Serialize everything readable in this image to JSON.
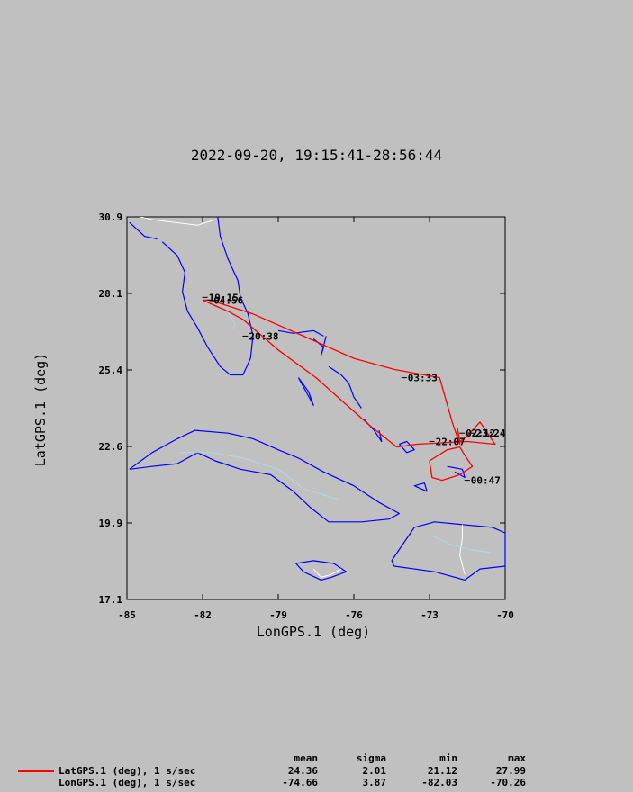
{
  "title": "2022-09-20, 19:15:41-28:56:44",
  "colors": {
    "track": "#ff0000",
    "coast": "#0000ff",
    "border": "#ffffff",
    "inland": "#add8e6",
    "background": "#c0c0c0"
  },
  "chart_data": {
    "type": "line",
    "xlabel": "LonGPS.1 (deg)",
    "ylabel": "LatGPS.1 (deg)",
    "xlim": [
      -85,
      -70
    ],
    "ylim": [
      17.1,
      30.9
    ],
    "x_ticks": [
      "-85",
      "-82",
      "-79",
      "-76",
      "-73",
      "-70"
    ],
    "y_ticks": [
      "30.9",
      "28.1",
      "25.4",
      "22.6",
      "19.9",
      "17.1"
    ],
    "track": [
      [
        -82.0,
        27.9
      ],
      [
        -81.7,
        27.9
      ],
      [
        -80.0,
        27.4
      ],
      [
        -78.0,
        26.6
      ],
      [
        -76.0,
        25.8
      ],
      [
        -74.4,
        25.4
      ],
      [
        -72.6,
        25.1
      ],
      [
        -72.1,
        23.5
      ],
      [
        -71.8,
        22.7
      ],
      [
        -71.9,
        23.3
      ],
      [
        -71.8,
        22.8
      ],
      [
        -71.5,
        23.0
      ],
      [
        -71.0,
        23.5
      ],
      [
        -70.4,
        22.7
      ],
      [
        -71.5,
        22.8
      ],
      [
        -73.5,
        22.7
      ],
      [
        -74.3,
        22.6
      ],
      [
        -75.4,
        23.4
      ],
      [
        -77.5,
        25.1
      ],
      [
        -79.0,
        26.1
      ],
      [
        -80.4,
        27.2
      ],
      [
        -81.0,
        27.5
      ],
      [
        -81.5,
        27.7
      ],
      [
        -82.0,
        27.9
      ]
    ],
    "track_south": [
      [
        -71.8,
        22.6
      ],
      [
        -71.6,
        22.3
      ],
      [
        -71.3,
        21.9
      ],
      [
        -71.8,
        21.6
      ],
      [
        -72.5,
        21.4
      ],
      [
        -72.9,
        21.5
      ],
      [
        -73.0,
        22.1
      ],
      [
        -72.3,
        22.5
      ],
      [
        -71.8,
        22.6
      ]
    ],
    "annotations": [
      {
        "text": "19:15",
        "lon": -81.8,
        "lat": 28.0
      },
      {
        "text": "04:56",
        "lon": -81.6,
        "lat": 27.9
      },
      {
        "text": "20:38",
        "lon": -80.2,
        "lat": 26.6
      },
      {
        "text": "03:33",
        "lon": -73.9,
        "lat": 25.1
      },
      {
        "text": "22:07",
        "lon": -72.8,
        "lat": 22.8
      },
      {
        "text": "02:12",
        "lon": -71.6,
        "lat": 23.1
      },
      {
        "text": "23:24",
        "lon": -71.2,
        "lat": 23.1
      },
      {
        "text": "00:47",
        "lon": -71.4,
        "lat": 21.4
      }
    ],
    "coastlines": [
      [
        [
          -83.6,
          30.0
        ],
        [
          -83.0,
          29.5
        ],
        [
          -82.7,
          28.9
        ],
        [
          -82.8,
          28.2
        ],
        [
          -82.6,
          27.5
        ],
        [
          -82.2,
          26.9
        ],
        [
          -81.8,
          26.2
        ],
        [
          -81.3,
          25.5
        ],
        [
          -80.9,
          25.2
        ],
        [
          -80.4,
          25.2
        ],
        [
          -80.1,
          25.8
        ],
        [
          -80.0,
          26.6
        ],
        [
          -80.2,
          27.4
        ],
        [
          -80.5,
          28.0
        ],
        [
          -80.6,
          28.6
        ],
        [
          -81.0,
          29.4
        ],
        [
          -81.3,
          30.2
        ],
        [
          -81.4,
          30.9
        ]
      ],
      [
        [
          -84.9,
          30.7
        ],
        [
          -84.3,
          30.2
        ],
        [
          -83.8,
          30.1
        ]
      ],
      [
        [
          -84.9,
          21.8
        ],
        [
          -84.0,
          22.4
        ],
        [
          -83.0,
          22.9
        ],
        [
          -82.3,
          23.2
        ],
        [
          -81.0,
          23.1
        ],
        [
          -80.0,
          22.9
        ],
        [
          -79.0,
          22.5
        ],
        [
          -78.2,
          22.2
        ],
        [
          -77.2,
          21.7
        ],
        [
          -76.0,
          21.2
        ],
        [
          -75.0,
          20.6
        ],
        [
          -74.2,
          20.2
        ],
        [
          -74.6,
          20.0
        ],
        [
          -75.7,
          19.9
        ],
        [
          -77.0,
          19.9
        ],
        [
          -77.7,
          20.4
        ],
        [
          -78.4,
          21.0
        ],
        [
          -79.3,
          21.6
        ],
        [
          -80.5,
          21.8
        ],
        [
          -81.5,
          22.1
        ],
        [
          -82.2,
          22.4
        ],
        [
          -83.0,
          22.0
        ],
        [
          -84.0,
          21.9
        ],
        [
          -84.9,
          21.8
        ]
      ],
      [
        [
          -78.3,
          18.4
        ],
        [
          -77.6,
          18.5
        ],
        [
          -76.8,
          18.4
        ],
        [
          -76.3,
          18.1
        ],
        [
          -76.9,
          17.9
        ],
        [
          -77.3,
          17.8
        ],
        [
          -78.0,
          18.1
        ],
        [
          -78.3,
          18.4
        ]
      ],
      [
        [
          -74.5,
          18.5
        ],
        [
          -73.6,
          19.7
        ],
        [
          -72.8,
          19.9
        ],
        [
          -71.7,
          19.8
        ],
        [
          -70.5,
          19.7
        ],
        [
          -70.0,
          19.5
        ],
        [
          -70.0,
          18.3
        ],
        [
          -71.0,
          18.2
        ],
        [
          -71.6,
          17.8
        ],
        [
          -72.8,
          18.1
        ],
        [
          -74.4,
          18.3
        ],
        [
          -74.5,
          18.5
        ]
      ],
      [
        [
          -79.0,
          26.8
        ],
        [
          -78.4,
          26.7
        ],
        [
          -77.6,
          26.8
        ],
        [
          -77.2,
          26.6
        ]
      ],
      [
        [
          -77.6,
          26.5
        ],
        [
          -77.2,
          26.2
        ],
        [
          -77.3,
          25.9
        ],
        [
          -77.1,
          26.6
        ]
      ],
      [
        [
          -78.2,
          25.1
        ],
        [
          -77.8,
          24.6
        ],
        [
          -77.6,
          24.1
        ],
        [
          -77.9,
          24.6
        ],
        [
          -78.2,
          25.1
        ]
      ],
      [
        [
          -77.0,
          25.5
        ],
        [
          -76.5,
          25.2
        ],
        [
          -76.2,
          24.9
        ],
        [
          -76.0,
          24.4
        ],
        [
          -75.7,
          24.0
        ]
      ],
      [
        [
          -75.6,
          23.6
        ],
        [
          -75.2,
          23.2
        ],
        [
          -74.9,
          22.8
        ],
        [
          -75.0,
          23.2
        ]
      ],
      [
        [
          -74.2,
          22.7
        ],
        [
          -73.9,
          22.4
        ],
        [
          -73.6,
          22.5
        ],
        [
          -73.9,
          22.8
        ],
        [
          -74.2,
          22.7
        ]
      ],
      [
        [
          -73.1,
          21.0
        ],
        [
          -73.6,
          21.2
        ],
        [
          -73.2,
          21.3
        ],
        [
          -73.1,
          21.0
        ]
      ],
      [
        [
          -72.3,
          21.9
        ],
        [
          -71.7,
          21.8
        ],
        [
          -71.6,
          21.5
        ],
        [
          -72.0,
          21.7
        ]
      ]
    ],
    "borders": [
      [
        [
          -87.0,
          31.0
        ],
        [
          -84.9,
          31.0
        ],
        [
          -84.0,
          30.8
        ],
        [
          -82.2,
          30.6
        ],
        [
          -81.5,
          30.8
        ]
      ],
      [
        [
          -71.7,
          19.8
        ],
        [
          -71.7,
          19.3
        ],
        [
          -71.8,
          18.7
        ],
        [
          -71.6,
          18.0
        ]
      ],
      [
        [
          -77.6,
          18.2
        ],
        [
          -77.3,
          17.9
        ],
        [
          -76.9,
          18.0
        ],
        [
          -76.5,
          18.2
        ]
      ]
    ],
    "inland": [
      [
        [
          -82.9,
          22.4
        ],
        [
          -81.6,
          22.4
        ],
        [
          -80.4,
          22.2
        ],
        [
          -79.0,
          21.8
        ],
        [
          -78.0,
          21.1
        ],
        [
          -76.6,
          20.7
        ]
      ],
      [
        [
          -81.2,
          27.9
        ],
        [
          -81.0,
          27.5
        ],
        [
          -80.7,
          27.0
        ],
        [
          -80.9,
          26.8
        ]
      ],
      [
        [
          -72.9,
          19.4
        ],
        [
          -72.2,
          19.1
        ],
        [
          -71.4,
          18.9
        ],
        [
          -70.6,
          18.8
        ]
      ]
    ]
  },
  "legend": {
    "headers": {
      "mean": "mean",
      "sigma": "sigma",
      "min": "min",
      "max": "max"
    },
    "rows": [
      {
        "name": "LatGPS.1 (deg), 1 s/sec",
        "mean": "24.36",
        "sigma": "2.01",
        "min": "21.12",
        "max": "27.99",
        "has_swatch": true
      },
      {
        "name": "LonGPS.1 (deg), 1 s/sec",
        "mean": "-74.66",
        "sigma": "3.87",
        "min": "-82.03",
        "max": "-70.26",
        "has_swatch": false
      }
    ]
  }
}
